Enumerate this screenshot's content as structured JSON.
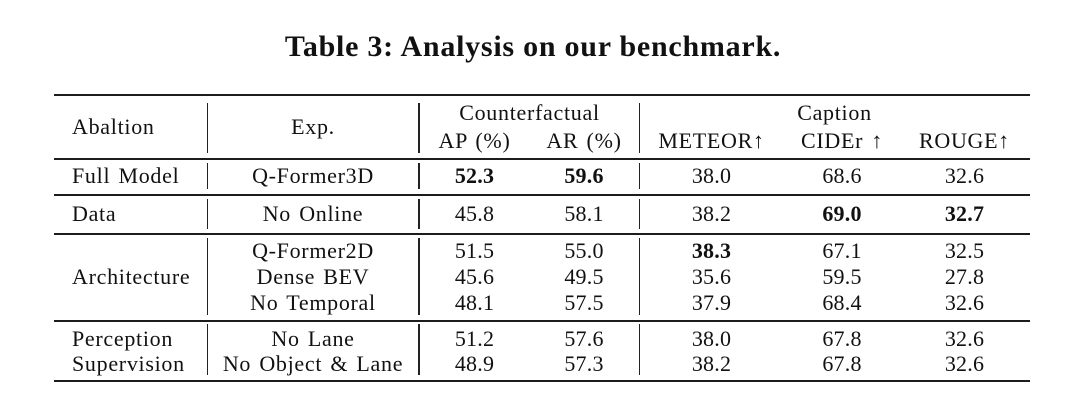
{
  "title": "Table 3: Analysis on our benchmark.",
  "colors": {
    "background": "#ffffff",
    "text": "#111111",
    "rules": "#1c1c1c"
  },
  "table": {
    "header": {
      "ablation": "Abaltion",
      "exp": "Exp.",
      "groups": [
        {
          "label": "Counterfactual",
          "cols": [
            "AP (%)",
            "AR (%)"
          ]
        },
        {
          "label": "Caption",
          "cols": [
            "METEOR↑",
            "CIDEr ↑",
            "ROUGE↑"
          ]
        }
      ]
    },
    "groups": [
      {
        "ablation": "Full Model",
        "ablation_lines": [
          "Full Model"
        ],
        "rows": [
          {
            "exp": "Q-Former3D",
            "values": [
              "52.3",
              "59.6",
              "38.0",
              "68.6",
              "32.6"
            ],
            "bold": [
              true,
              true,
              false,
              false,
              false
            ]
          }
        ]
      },
      {
        "ablation": "Data",
        "ablation_lines": [
          "Data"
        ],
        "rows": [
          {
            "exp": "No Online",
            "values": [
              "45.8",
              "58.1",
              "38.2",
              "69.0",
              "32.7"
            ],
            "bold": [
              false,
              false,
              false,
              true,
              true
            ]
          }
        ]
      },
      {
        "ablation": "Architecture",
        "ablation_lines": [
          "Architecture"
        ],
        "rows": [
          {
            "exp": "Q-Former2D",
            "values": [
              "51.5",
              "55.0",
              "38.3",
              "67.1",
              "32.5"
            ],
            "bold": [
              false,
              false,
              true,
              false,
              false
            ]
          },
          {
            "exp": "Dense BEV",
            "values": [
              "45.6",
              "49.5",
              "35.6",
              "59.5",
              "27.8"
            ],
            "bold": [
              false,
              false,
              false,
              false,
              false
            ]
          },
          {
            "exp": "No Temporal",
            "values": [
              "48.1",
              "57.5",
              "37.9",
              "68.4",
              "32.6"
            ],
            "bold": [
              false,
              false,
              false,
              false,
              false
            ]
          }
        ]
      },
      {
        "ablation": "Perception Supervision",
        "ablation_lines": [
          "Perception",
          "Supervision"
        ],
        "rows": [
          {
            "exp": "No Lane",
            "values": [
              "51.2",
              "57.6",
              "38.0",
              "67.8",
              "32.6"
            ],
            "bold": [
              false,
              false,
              false,
              false,
              false
            ]
          },
          {
            "exp": "No Object & Lane",
            "values": [
              "48.9",
              "57.3",
              "38.2",
              "67.8",
              "32.6"
            ],
            "bold": [
              false,
              false,
              false,
              false,
              false
            ]
          }
        ]
      }
    ]
  }
}
